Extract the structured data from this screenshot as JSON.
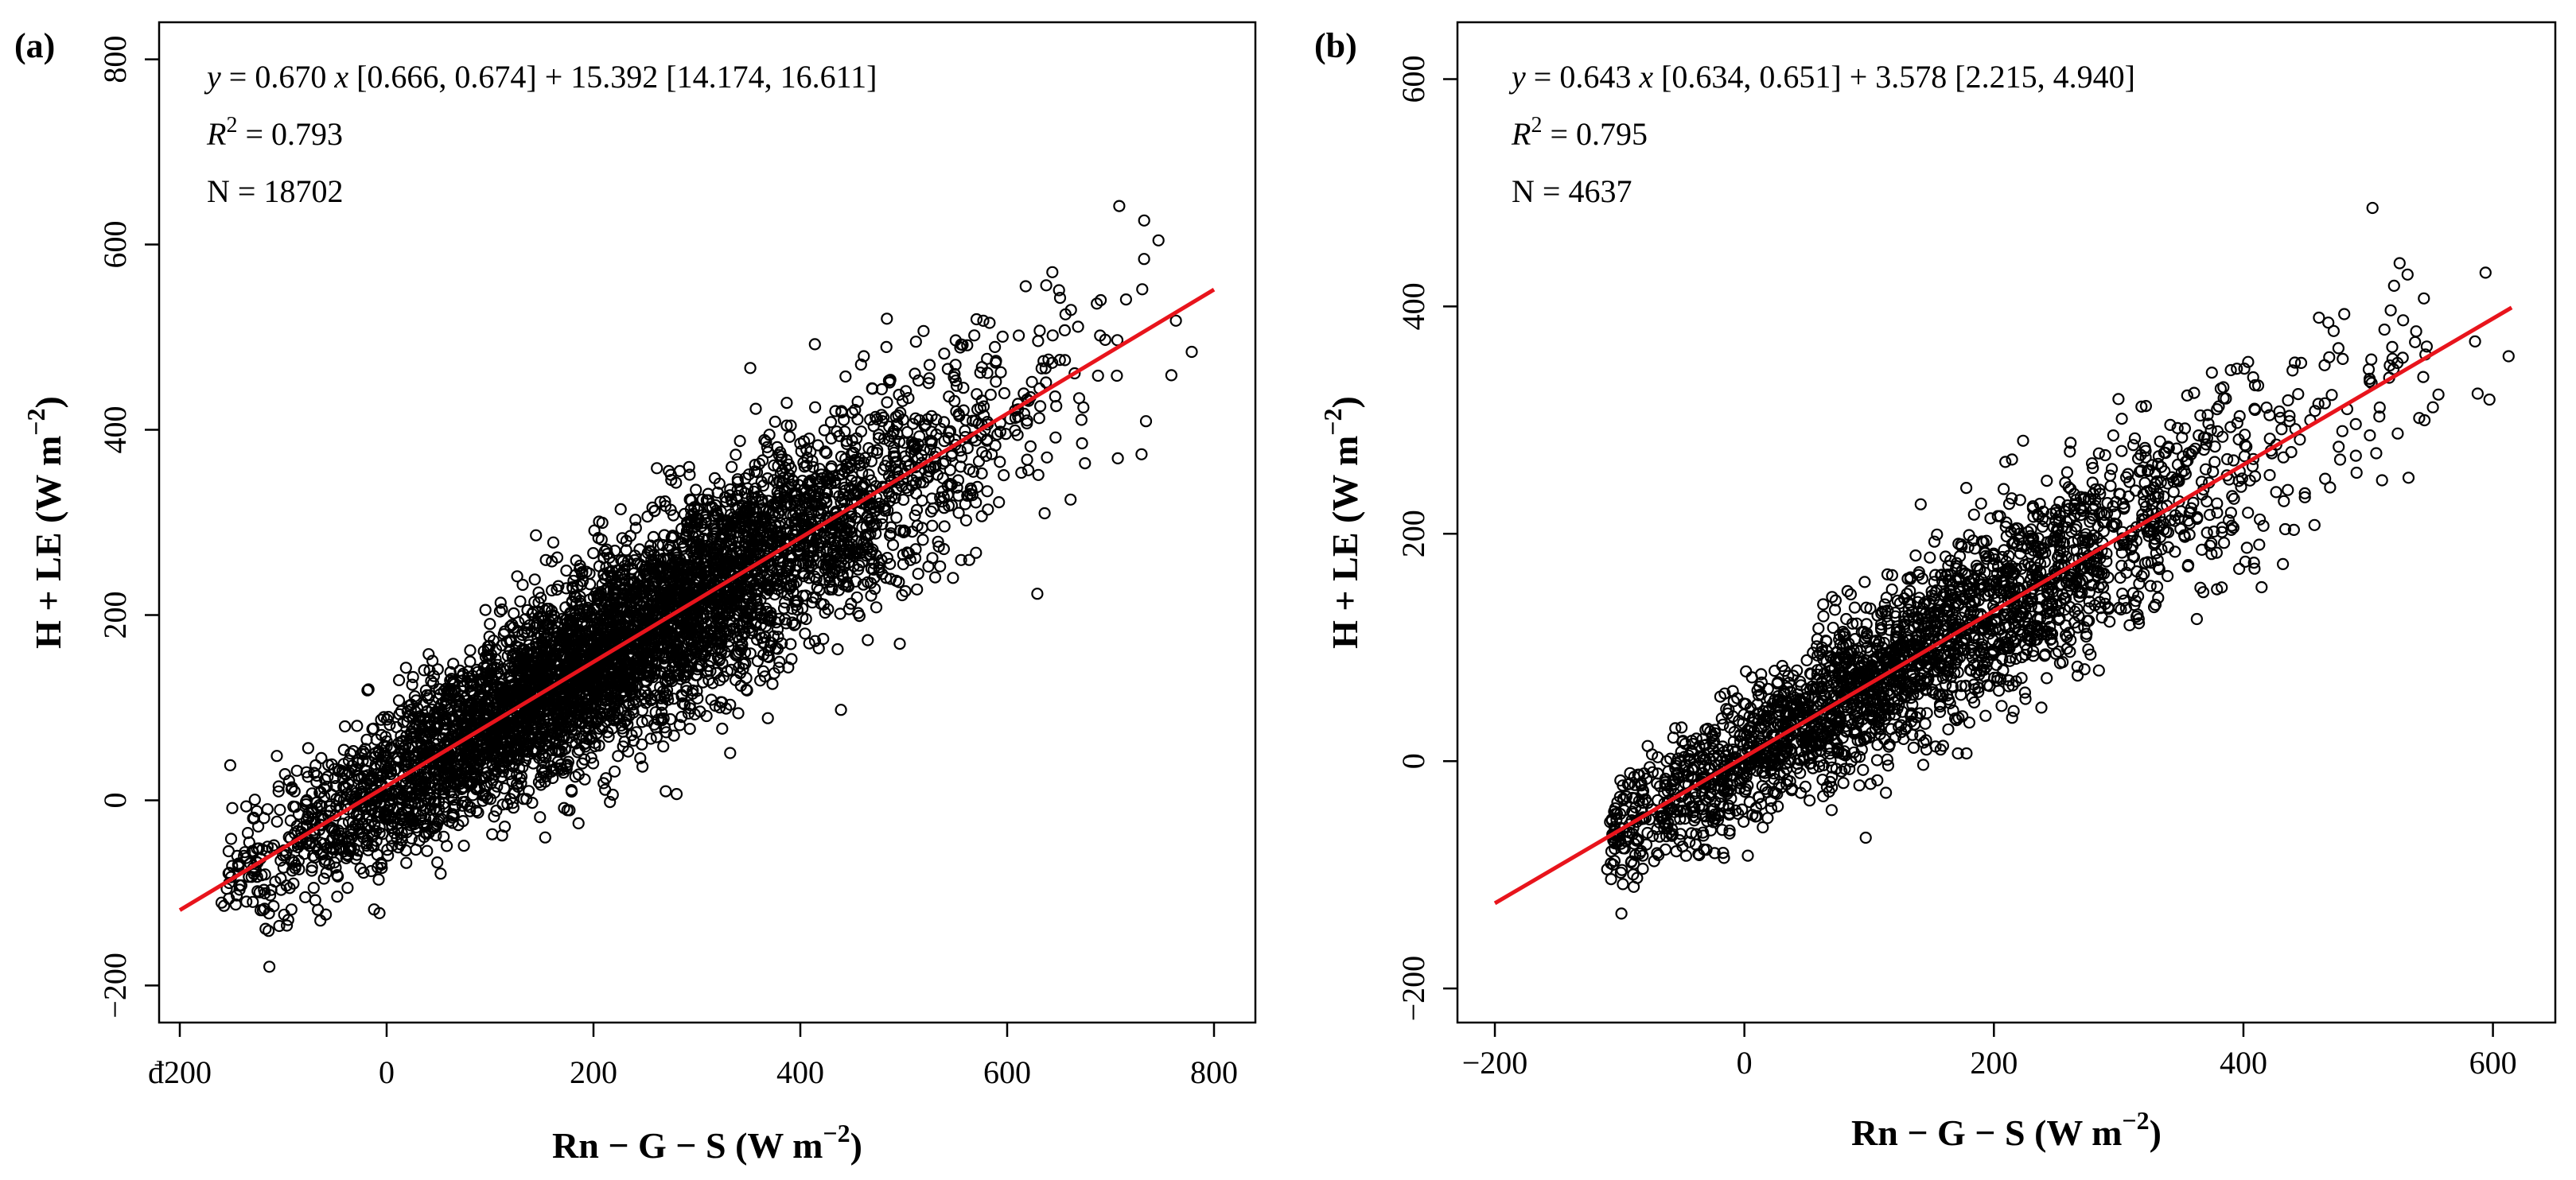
{
  "chart_data": [
    {
      "type": "scatter",
      "panel_label": "(a)",
      "xlabel": "Rn − G − S (W m",
      "xlabel_sup": "−2",
      "xlabel_close": ")",
      "ylabel": "H + LE (W m",
      "ylabel_sup": "−2",
      "ylabel_close": ")",
      "xlim": [
        -220,
        840
      ],
      "ylim": [
        -240,
        840
      ],
      "x_ticks": [
        -200,
        0,
        200,
        400,
        600,
        800
      ],
      "x_tick_labels": [
        "đ200",
        "0",
        "200",
        "400",
        "600",
        "800"
      ],
      "y_ticks": [
        -200,
        0,
        200,
        400,
        600,
        800
      ],
      "y_tick_labels": [
        "−200",
        "0",
        "200",
        "400",
        "600",
        "800"
      ],
      "fit_line": {
        "slope": 0.67,
        "intercept": 15.392,
        "x_range": [
          -200,
          800
        ],
        "color": "#e8141c"
      },
      "annotation": {
        "eq_y": "y",
        "eq_mid": " = 0.670 ",
        "eq_x": "x",
        "eq_rest": " [0.666, 0.674] + 15.392 [14.174, 16.611]",
        "r2_r": "R",
        "r2_sup": "2",
        "r2_val": " = 0.793",
        "n_text": "N = 18702"
      },
      "cloud": {
        "n_points": 18702,
        "x_mean": 220,
        "x_sd": 170,
        "x_min": -160,
        "x_max": 780,
        "y_slope": 0.67,
        "y_intercept": 15.392,
        "y_noise_sd": 65,
        "render_points": 5200
      }
    },
    {
      "type": "scatter",
      "panel_label": "(b)",
      "xlabel": "Rn − G − S (W m",
      "xlabel_sup": "−2",
      "xlabel_close": ")",
      "ylabel": "H + LE (W m",
      "ylabel_sup": "−2",
      "ylabel_close": ")",
      "xlim": [
        -230,
        650
      ],
      "ylim": [
        -230,
        650
      ],
      "x_ticks": [
        -200,
        0,
        200,
        400,
        600
      ],
      "x_tick_labels": [
        "−200",
        "0",
        "200",
        "400",
        "600"
      ],
      "y_ticks": [
        -200,
        0,
        200,
        400,
        600
      ],
      "y_tick_labels": [
        "−200",
        "0",
        "200",
        "400",
        "600"
      ],
      "fit_line": {
        "slope": 0.643,
        "intercept": 3.578,
        "x_range": [
          -200,
          615
        ],
        "color": "#e8141c"
      },
      "annotation": {
        "eq_y": "y",
        "eq_mid": " = 0.643 ",
        "eq_x": "x",
        "eq_rest": " [0.634, 0.651] + 3.578 [2.215, 4.940]",
        "r2_r": "R",
        "r2_sup": "2",
        "r2_val": " = 0.795",
        "n_text": "N = 4637"
      },
      "cloud": {
        "n_points": 4637,
        "x_mean": 130,
        "x_sd": 150,
        "x_min": -110,
        "x_max": 615,
        "y_slope": 0.643,
        "y_intercept": 3.578,
        "y_noise_sd": 48,
        "render_points": 2600
      }
    }
  ]
}
